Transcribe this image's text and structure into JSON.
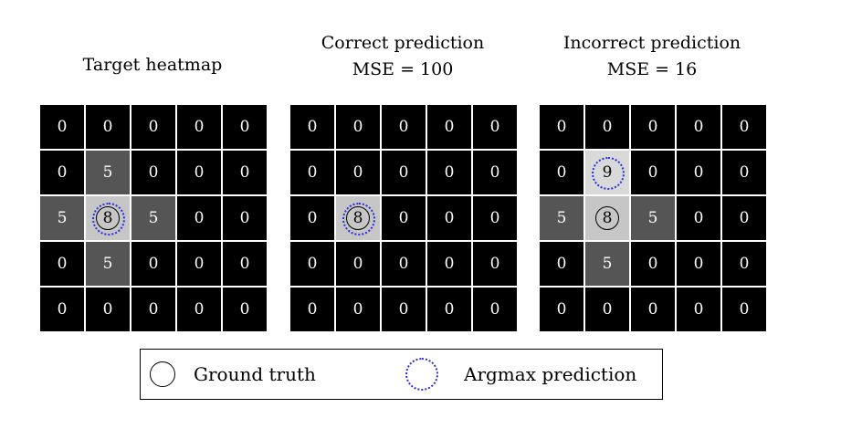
{
  "panels": [
    {
      "title_lines": [
        "Target heatmap"
      ],
      "values": [
        [
          0,
          0,
          0,
          0,
          0
        ],
        [
          0,
          5,
          0,
          0,
          0
        ],
        [
          5,
          8,
          5,
          0,
          0
        ],
        [
          0,
          5,
          0,
          0,
          0
        ],
        [
          0,
          0,
          0,
          0,
          0
        ]
      ],
      "ground_truth": [
        2,
        1
      ],
      "argmax_prediction": [
        2,
        1
      ]
    },
    {
      "title_lines": [
        "Correct prediction",
        "MSE = 100"
      ],
      "values": [
        [
          0,
          0,
          0,
          0,
          0
        ],
        [
          0,
          0,
          0,
          0,
          0
        ],
        [
          0,
          8,
          0,
          0,
          0
        ],
        [
          0,
          0,
          0,
          0,
          0
        ],
        [
          0,
          0,
          0,
          0,
          0
        ]
      ],
      "ground_truth": [
        2,
        1
      ],
      "argmax_prediction": [
        2,
        1
      ]
    },
    {
      "title_lines": [
        "Incorrect prediction",
        "MSE = 16"
      ],
      "values": [
        [
          0,
          0,
          0,
          0,
          0
        ],
        [
          0,
          9,
          0,
          0,
          0
        ],
        [
          5,
          8,
          5,
          0,
          0
        ],
        [
          0,
          5,
          0,
          0,
          0
        ],
        [
          0,
          0,
          0,
          0,
          0
        ]
      ],
      "ground_truth": [
        2,
        1
      ],
      "argmax_prediction": [
        1,
        1
      ]
    }
  ],
  "colors": {
    "value_0": "#000000",
    "value_5": "#555555",
    "value_8": "#c6c6c6",
    "value_9": "#d9d9d9",
    "ground_truth_stroke": "#000000",
    "argmax_stroke": "#2a2ae0"
  },
  "legend": {
    "ground_truth_label": "Ground truth",
    "argmax_label": "Argmax prediction",
    "ground_truth_icon": "solid-circle-icon",
    "argmax_icon": "dotted-circle-icon"
  }
}
